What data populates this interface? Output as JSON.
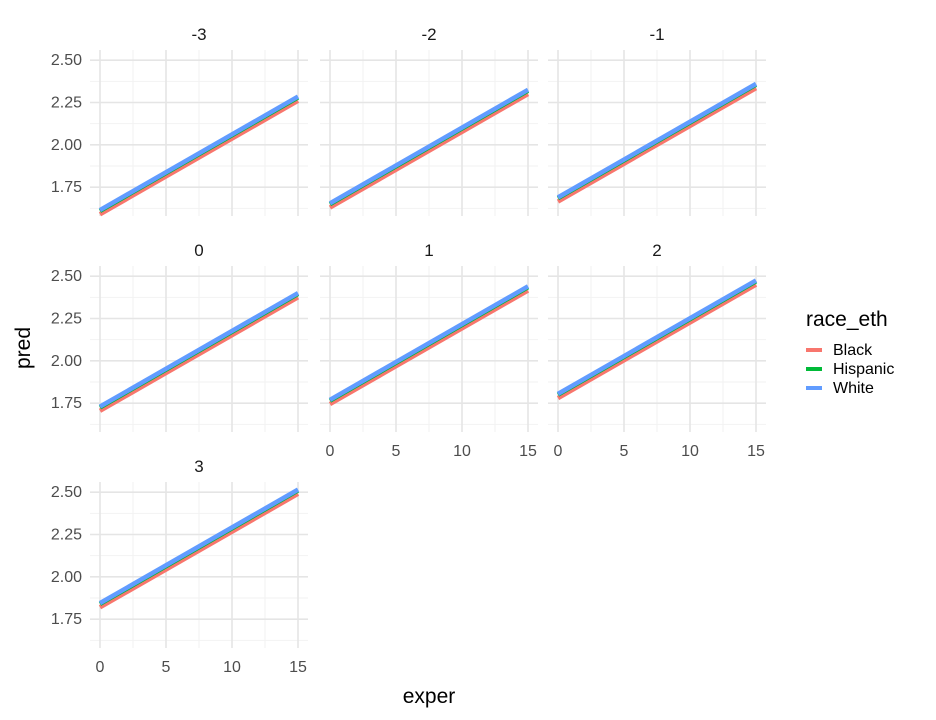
{
  "chart_data": {
    "type": "line",
    "layout": "facet_wrap",
    "xlabel": "exper",
    "ylabel": "pred",
    "xlim": [
      0,
      15
    ],
    "ylim": [
      1.58,
      2.56
    ],
    "x_ticks": [
      0,
      5,
      10,
      15
    ],
    "y_ticks": [
      1.75,
      2.0,
      2.25,
      2.5
    ],
    "y_tick_labels": [
      "1.75",
      "2.00",
      "2.25",
      "2.50"
    ],
    "grid": true,
    "legend": {
      "title": "race_eth",
      "placement": "right",
      "entries": [
        {
          "name": "Black",
          "color": "#F8766D"
        },
        {
          "name": "Hispanic",
          "color": "#00BA38"
        },
        {
          "name": "White",
          "color": "#619CFF"
        }
      ]
    },
    "panels": [
      {
        "label": "-3",
        "series": [
          {
            "name": "Black",
            "x": [
              0,
              15
            ],
            "y": [
              1.59,
              2.26
            ]
          },
          {
            "name": "Hispanic",
            "x": [
              0,
              15
            ],
            "y": [
              1.61,
              2.28
            ]
          },
          {
            "name": "White",
            "x": [
              0,
              15
            ],
            "y": [
              1.615,
              2.285
            ]
          }
        ]
      },
      {
        "label": "-2",
        "series": [
          {
            "name": "Black",
            "x": [
              0,
              15
            ],
            "y": [
              1.63,
              2.3
            ]
          },
          {
            "name": "Hispanic",
            "x": [
              0,
              15
            ],
            "y": [
              1.65,
              2.32
            ]
          },
          {
            "name": "White",
            "x": [
              0,
              15
            ],
            "y": [
              1.655,
              2.325
            ]
          }
        ]
      },
      {
        "label": "-1",
        "series": [
          {
            "name": "Black",
            "x": [
              0,
              15
            ],
            "y": [
              1.665,
              2.335
            ]
          },
          {
            "name": "Hispanic",
            "x": [
              0,
              15
            ],
            "y": [
              1.685,
              2.355
            ]
          },
          {
            "name": "White",
            "x": [
              0,
              15
            ],
            "y": [
              1.69,
              2.36
            ]
          }
        ]
      },
      {
        "label": "0",
        "series": [
          {
            "name": "Black",
            "x": [
              0,
              15
            ],
            "y": [
              1.705,
              2.375
            ]
          },
          {
            "name": "Hispanic",
            "x": [
              0,
              15
            ],
            "y": [
              1.725,
              2.395
            ]
          },
          {
            "name": "White",
            "x": [
              0,
              15
            ],
            "y": [
              1.73,
              2.4
            ]
          }
        ]
      },
      {
        "label": "1",
        "series": [
          {
            "name": "Black",
            "x": [
              0,
              15
            ],
            "y": [
              1.745,
              2.415
            ]
          },
          {
            "name": "Hispanic",
            "x": [
              0,
              15
            ],
            "y": [
              1.765,
              2.435
            ]
          },
          {
            "name": "White",
            "x": [
              0,
              15
            ],
            "y": [
              1.77,
              2.44
            ]
          }
        ]
      },
      {
        "label": "2",
        "series": [
          {
            "name": "Black",
            "x": [
              0,
              15
            ],
            "y": [
              1.78,
              2.45
            ]
          },
          {
            "name": "Hispanic",
            "x": [
              0,
              15
            ],
            "y": [
              1.8,
              2.47
            ]
          },
          {
            "name": "White",
            "x": [
              0,
              15
            ],
            "y": [
              1.805,
              2.475
            ]
          }
        ]
      },
      {
        "label": "3",
        "series": [
          {
            "name": "Black",
            "x": [
              0,
              15
            ],
            "y": [
              1.82,
              2.49
            ]
          },
          {
            "name": "Hispanic",
            "x": [
              0,
              15
            ],
            "y": [
              1.84,
              2.51
            ]
          },
          {
            "name": "White",
            "x": [
              0,
              15
            ],
            "y": [
              1.845,
              2.515
            ]
          }
        ]
      }
    ]
  }
}
